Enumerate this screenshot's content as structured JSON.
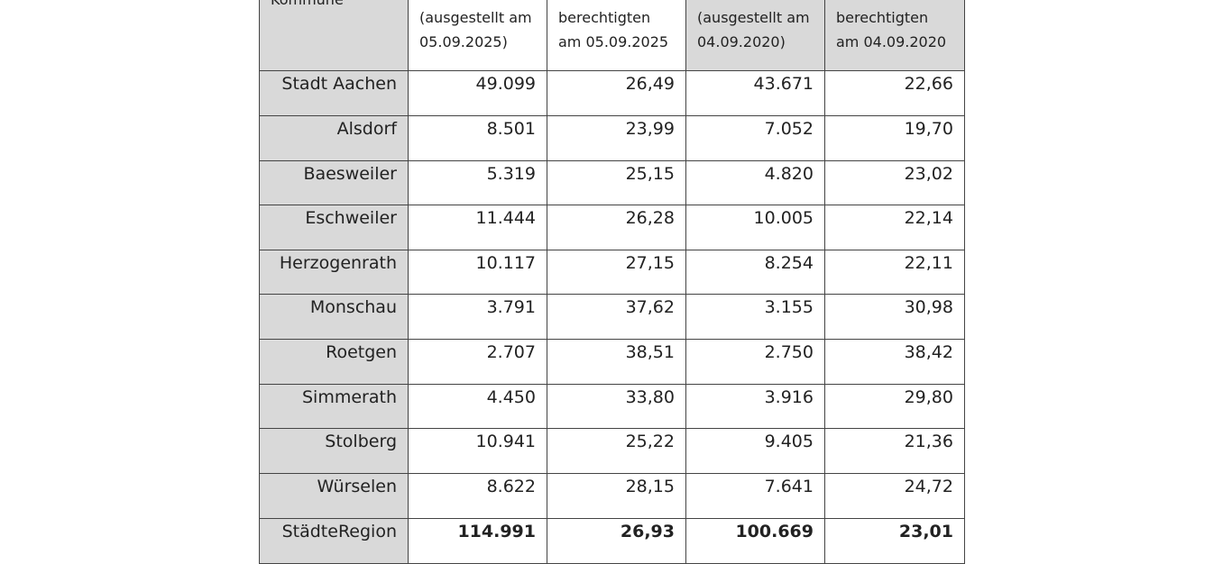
{
  "table": {
    "header": [
      [
        "Kommune"
      ],
      [
        "(ausgestellt am",
        "05.09.2025)"
      ],
      [
        "berechtigten",
        "am 05.09.2025"
      ],
      [
        "(ausgestellt am",
        "04.09.2020)"
      ],
      [
        "berechtigten",
        "am 04.09.2020"
      ]
    ],
    "rows": [
      [
        "Stadt Aachen",
        "49.099",
        "26,49",
        "43.671",
        "22,66"
      ],
      [
        "Alsdorf",
        "8.501",
        "23,99",
        "7.052",
        "19,70"
      ],
      [
        "Baesweiler",
        "5.319",
        "25,15",
        "4.820",
        "23,02"
      ],
      [
        "Eschweiler",
        "11.444",
        "26,28",
        "10.005",
        "22,14"
      ],
      [
        "Herzogenrath",
        "10.117",
        "27,15",
        "8.254",
        "22,11"
      ],
      [
        "Monschau",
        "3.791",
        "37,62",
        "3.155",
        "30,98"
      ],
      [
        "Roetgen",
        "2.707",
        "38,51",
        "2.750",
        "38,42"
      ],
      [
        "Simmerath",
        "4.450",
        "33,80",
        "3.916",
        "29,80"
      ],
      [
        "Stolberg",
        "10.941",
        "25,22",
        "9.405",
        "21,36"
      ],
      [
        "Würselen",
        "8.622",
        "28,15",
        "7.641",
        "24,72"
      ],
      [
        "StädteRegion",
        "114.991",
        "26,93",
        "100.669",
        "23,01"
      ]
    ]
  }
}
